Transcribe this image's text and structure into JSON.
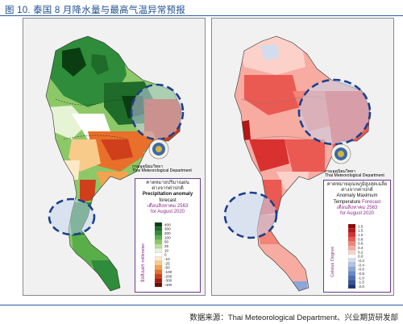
{
  "figure": {
    "title": "图 10. 泰国 8 月降水量与最高气温异常预报",
    "source": "数据来源：Thai Meteorological Department、兴业期货研发部"
  },
  "left_map": {
    "agency_thai": "กรมอุตุนิยมวิทยา",
    "agency_en": "Thai Meteorological Department",
    "legend": {
      "line1": "คาดหมายปริมาณฝน",
      "line2": "ต่างจากค่าปกติ",
      "line3": "Precipitation anomaly",
      "line4": "forecast",
      "line5": "เดือนสิงหาคม 2563",
      "line6": "for August 2020",
      "unit_label": "มิลลิเมตร millimeter",
      "ticks": [
        "400",
        "300",
        "200",
        "100",
        "50",
        "25",
        "10",
        "0",
        "-10",
        "-25",
        "-50",
        "-100",
        "-200",
        "-300",
        "-400"
      ],
      "colors": [
        "#0b3d12",
        "#1f6b2a",
        "#2f8c3a",
        "#5aae4a",
        "#8cc868",
        "#bcdfa0",
        "#e6f3d5",
        "#ffffff",
        "#fde9c8",
        "#f9cb8a",
        "#f3a24e",
        "#e8702a",
        "#cf3f1b",
        "#a31b10",
        "#6e0d08"
      ]
    }
  },
  "right_map": {
    "agency_thai": "กรมอุตุนิยมวิทยา",
    "agency_en": "Thai Meteorological Department",
    "legend": {
      "line1": "คาดหมายอุณหภูมิสูงสุดเฉลี่ย",
      "line2": "ต่างจากค่าปกติ",
      "line3": "Anomaly Maximum",
      "line4": "Temperature",
      "line4b": "Forecast",
      "line5": "เดือนสิงหาคม 2563",
      "line6": "for August 2020",
      "unit_label": "Celsius Degree",
      "ticks": [
        "2.0",
        "1.5",
        "1.0",
        "0.8",
        "0.6",
        "0.4",
        "0.2",
        "0.0",
        "-0.2",
        "-0.4",
        "-0.6",
        "-0.8",
        "-1.0",
        "-1.5",
        "-2.0"
      ],
      "colors": [
        "#8b0a0a",
        "#b51616",
        "#d93030",
        "#ea5a52",
        "#f28478",
        "#f7aba1",
        "#fbd1ca",
        "#ffffff",
        "#d3dcef",
        "#b3c3e4",
        "#8da6d6",
        "#6a89c8",
        "#4e6db5",
        "#33509a",
        "#1f3577"
      ]
    }
  }
}
